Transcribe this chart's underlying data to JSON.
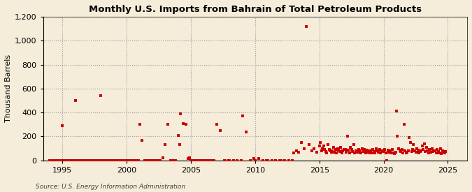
{
  "title": "Monthly U.S. Imports from Bahrain of Total Petroleum Products",
  "ylabel": "Thousand Barrels",
  "source": "Source: U.S. Energy Information Administration",
  "background_color": "#f5edda",
  "plot_bg_color": "#f5edda",
  "dot_color": "#cc0000",
  "xlim": [
    1993.5,
    2026.5
  ],
  "ylim": [
    0,
    1200
  ],
  "yticks": [
    0,
    200,
    400,
    600,
    800,
    1000,
    1200
  ],
  "xticks": [
    1995,
    2000,
    2005,
    2010,
    2015,
    2020,
    2025
  ],
  "data": [
    [
      1994.0,
      0
    ],
    [
      1994.1,
      0
    ],
    [
      1994.2,
      0
    ],
    [
      1994.3,
      0
    ],
    [
      1994.4,
      0
    ],
    [
      1994.5,
      0
    ],
    [
      1994.6,
      0
    ],
    [
      1994.7,
      0
    ],
    [
      1994.8,
      0
    ],
    [
      1994.9,
      0
    ],
    [
      1995.0,
      290
    ],
    [
      1995.1,
      0
    ],
    [
      1995.2,
      0
    ],
    [
      1995.3,
      0
    ],
    [
      1995.4,
      0
    ],
    [
      1995.5,
      0
    ],
    [
      1995.6,
      0
    ],
    [
      1995.7,
      0
    ],
    [
      1995.8,
      0
    ],
    [
      1995.9,
      0
    ],
    [
      1996.0,
      500
    ],
    [
      1996.1,
      0
    ],
    [
      1996.2,
      0
    ],
    [
      1996.3,
      0
    ],
    [
      1996.4,
      0
    ],
    [
      1996.5,
      0
    ],
    [
      1996.6,
      0
    ],
    [
      1996.7,
      0
    ],
    [
      1996.8,
      0
    ],
    [
      1996.9,
      0
    ],
    [
      1997.0,
      0
    ],
    [
      1997.1,
      0
    ],
    [
      1997.2,
      0
    ],
    [
      1997.3,
      0
    ],
    [
      1997.4,
      0
    ],
    [
      1997.5,
      0
    ],
    [
      1997.6,
      0
    ],
    [
      1997.7,
      0
    ],
    [
      1997.8,
      0
    ],
    [
      1997.9,
      0
    ],
    [
      1998.0,
      540
    ],
    [
      1998.1,
      0
    ],
    [
      1998.2,
      0
    ],
    [
      1998.3,
      0
    ],
    [
      1998.4,
      0
    ],
    [
      1998.5,
      0
    ],
    [
      1998.6,
      0
    ],
    [
      1998.7,
      0
    ],
    [
      1998.8,
      0
    ],
    [
      1998.9,
      0
    ],
    [
      1999.0,
      0
    ],
    [
      1999.1,
      0
    ],
    [
      1999.2,
      0
    ],
    [
      1999.3,
      0
    ],
    [
      1999.4,
      0
    ],
    [
      1999.5,
      0
    ],
    [
      1999.6,
      0
    ],
    [
      1999.7,
      0
    ],
    [
      1999.8,
      0
    ],
    [
      1999.9,
      0
    ],
    [
      2000.0,
      0
    ],
    [
      2000.1,
      0
    ],
    [
      2000.2,
      0
    ],
    [
      2000.3,
      0
    ],
    [
      2000.4,
      0
    ],
    [
      2000.5,
      0
    ],
    [
      2000.6,
      0
    ],
    [
      2000.7,
      0
    ],
    [
      2000.8,
      0
    ],
    [
      2000.9,
      0
    ],
    [
      2001.0,
      300
    ],
    [
      2001.2,
      170
    ],
    [
      2001.4,
      0
    ],
    [
      2001.6,
      0
    ],
    [
      2001.8,
      0
    ],
    [
      2002.0,
      0
    ],
    [
      2002.2,
      0
    ],
    [
      2002.4,
      0
    ],
    [
      2002.6,
      0
    ],
    [
      2002.8,
      20
    ],
    [
      2003.0,
      130
    ],
    [
      2003.2,
      300
    ],
    [
      2003.4,
      0
    ],
    [
      2003.6,
      0
    ],
    [
      2003.8,
      0
    ],
    [
      2004.0,
      210
    ],
    [
      2004.1,
      130
    ],
    [
      2004.2,
      390
    ],
    [
      2004.4,
      310
    ],
    [
      2004.6,
      300
    ],
    [
      2004.8,
      15
    ],
    [
      2004.9,
      20
    ],
    [
      2005.0,
      0
    ],
    [
      2005.2,
      0
    ],
    [
      2005.4,
      0
    ],
    [
      2005.6,
      0
    ],
    [
      2005.8,
      0
    ],
    [
      2006.0,
      0
    ],
    [
      2006.2,
      0
    ],
    [
      2006.4,
      0
    ],
    [
      2006.6,
      0
    ],
    [
      2006.8,
      0
    ],
    [
      2007.0,
      300
    ],
    [
      2007.3,
      250
    ],
    [
      2007.6,
      0
    ],
    [
      2007.9,
      0
    ],
    [
      2008.0,
      0
    ],
    [
      2008.3,
      0
    ],
    [
      2008.6,
      0
    ],
    [
      2008.9,
      0
    ],
    [
      2009.0,
      370
    ],
    [
      2009.3,
      240
    ],
    [
      2009.6,
      0
    ],
    [
      2009.9,
      15
    ],
    [
      2010.0,
      0
    ],
    [
      2010.3,
      15
    ],
    [
      2010.6,
      0
    ],
    [
      2010.9,
      0
    ],
    [
      2011.0,
      0
    ],
    [
      2011.3,
      0
    ],
    [
      2011.6,
      0
    ],
    [
      2011.9,
      0
    ],
    [
      2012.0,
      0
    ],
    [
      2012.3,
      0
    ],
    [
      2012.6,
      0
    ],
    [
      2012.9,
      0
    ],
    [
      2013.0,
      60
    ],
    [
      2013.2,
      80
    ],
    [
      2013.4,
      70
    ],
    [
      2013.6,
      150
    ],
    [
      2013.8,
      100
    ],
    [
      2014.0,
      1120
    ],
    [
      2014.2,
      130
    ],
    [
      2014.4,
      80
    ],
    [
      2014.6,
      100
    ],
    [
      2014.8,
      70
    ],
    [
      2015.0,
      120
    ],
    [
      2015.08,
      150
    ],
    [
      2015.17,
      80
    ],
    [
      2015.25,
      100
    ],
    [
      2015.33,
      120
    ],
    [
      2015.42,
      90
    ],
    [
      2015.5,
      75
    ],
    [
      2015.58,
      60
    ],
    [
      2015.67,
      130
    ],
    [
      2015.75,
      90
    ],
    [
      2015.83,
      80
    ],
    [
      2015.92,
      70
    ],
    [
      2016.0,
      80
    ],
    [
      2016.08,
      110
    ],
    [
      2016.17,
      70
    ],
    [
      2016.25,
      90
    ],
    [
      2016.33,
      60
    ],
    [
      2016.42,
      100
    ],
    [
      2016.5,
      85
    ],
    [
      2016.58,
      75
    ],
    [
      2016.67,
      110
    ],
    [
      2016.75,
      65
    ],
    [
      2016.83,
      80
    ],
    [
      2016.92,
      90
    ],
    [
      2017.0,
      90
    ],
    [
      2017.08,
      70
    ],
    [
      2017.17,
      200
    ],
    [
      2017.25,
      85
    ],
    [
      2017.33,
      60
    ],
    [
      2017.42,
      110
    ],
    [
      2017.5,
      90
    ],
    [
      2017.58,
      75
    ],
    [
      2017.67,
      130
    ],
    [
      2017.75,
      60
    ],
    [
      2017.83,
      80
    ],
    [
      2017.92,
      70
    ],
    [
      2018.0,
      70
    ],
    [
      2018.08,
      90
    ],
    [
      2018.17,
      80
    ],
    [
      2018.25,
      65
    ],
    [
      2018.33,
      100
    ],
    [
      2018.42,
      75
    ],
    [
      2018.5,
      90
    ],
    [
      2018.58,
      60
    ],
    [
      2018.67,
      85
    ],
    [
      2018.75,
      70
    ],
    [
      2018.83,
      80
    ],
    [
      2018.92,
      65
    ],
    [
      2019.0,
      80
    ],
    [
      2019.08,
      60
    ],
    [
      2019.17,
      90
    ],
    [
      2019.25,
      75
    ],
    [
      2019.33,
      65
    ],
    [
      2019.42,
      100
    ],
    [
      2019.5,
      80
    ],
    [
      2019.58,
      70
    ],
    [
      2019.67,
      90
    ],
    [
      2019.75,
      60
    ],
    [
      2019.83,
      75
    ],
    [
      2019.92,
      80
    ],
    [
      2020.0,
      75
    ],
    [
      2020.08,
      90
    ],
    [
      2020.17,
      60
    ],
    [
      2020.25,
      0
    ],
    [
      2020.33,
      85
    ],
    [
      2020.42,
      70
    ],
    [
      2020.5,
      80
    ],
    [
      2020.58,
      65
    ],
    [
      2020.67,
      90
    ],
    [
      2020.75,
      60
    ],
    [
      2020.83,
      55
    ],
    [
      2020.92,
      70
    ],
    [
      2021.0,
      410
    ],
    [
      2021.08,
      200
    ],
    [
      2021.17,
      100
    ],
    [
      2021.25,
      85
    ],
    [
      2021.33,
      75
    ],
    [
      2021.42,
      90
    ],
    [
      2021.5,
      65
    ],
    [
      2021.58,
      300
    ],
    [
      2021.67,
      80
    ],
    [
      2021.75,
      60
    ],
    [
      2021.83,
      70
    ],
    [
      2021.92,
      80
    ],
    [
      2022.0,
      190
    ],
    [
      2022.08,
      150
    ],
    [
      2022.17,
      75
    ],
    [
      2022.25,
      90
    ],
    [
      2022.33,
      130
    ],
    [
      2022.42,
      80
    ],
    [
      2022.5,
      70
    ],
    [
      2022.58,
      100
    ],
    [
      2022.67,
      85
    ],
    [
      2022.75,
      60
    ],
    [
      2022.83,
      75
    ],
    [
      2022.92,
      80
    ],
    [
      2023.0,
      120
    ],
    [
      2023.08,
      90
    ],
    [
      2023.17,
      140
    ],
    [
      2023.25,
      75
    ],
    [
      2023.33,
      110
    ],
    [
      2023.42,
      80
    ],
    [
      2023.5,
      65
    ],
    [
      2023.58,
      90
    ],
    [
      2023.67,
      70
    ],
    [
      2023.75,
      100
    ],
    [
      2023.83,
      75
    ],
    [
      2023.92,
      80
    ],
    [
      2024.0,
      80
    ],
    [
      2024.08,
      60
    ],
    [
      2024.17,
      90
    ],
    [
      2024.25,
      75
    ],
    [
      2024.33,
      65
    ],
    [
      2024.42,
      100
    ],
    [
      2024.5,
      55
    ],
    [
      2024.58,
      80
    ],
    [
      2024.67,
      70
    ],
    [
      2024.75,
      60
    ],
    [
      2024.83,
      75
    ]
  ]
}
